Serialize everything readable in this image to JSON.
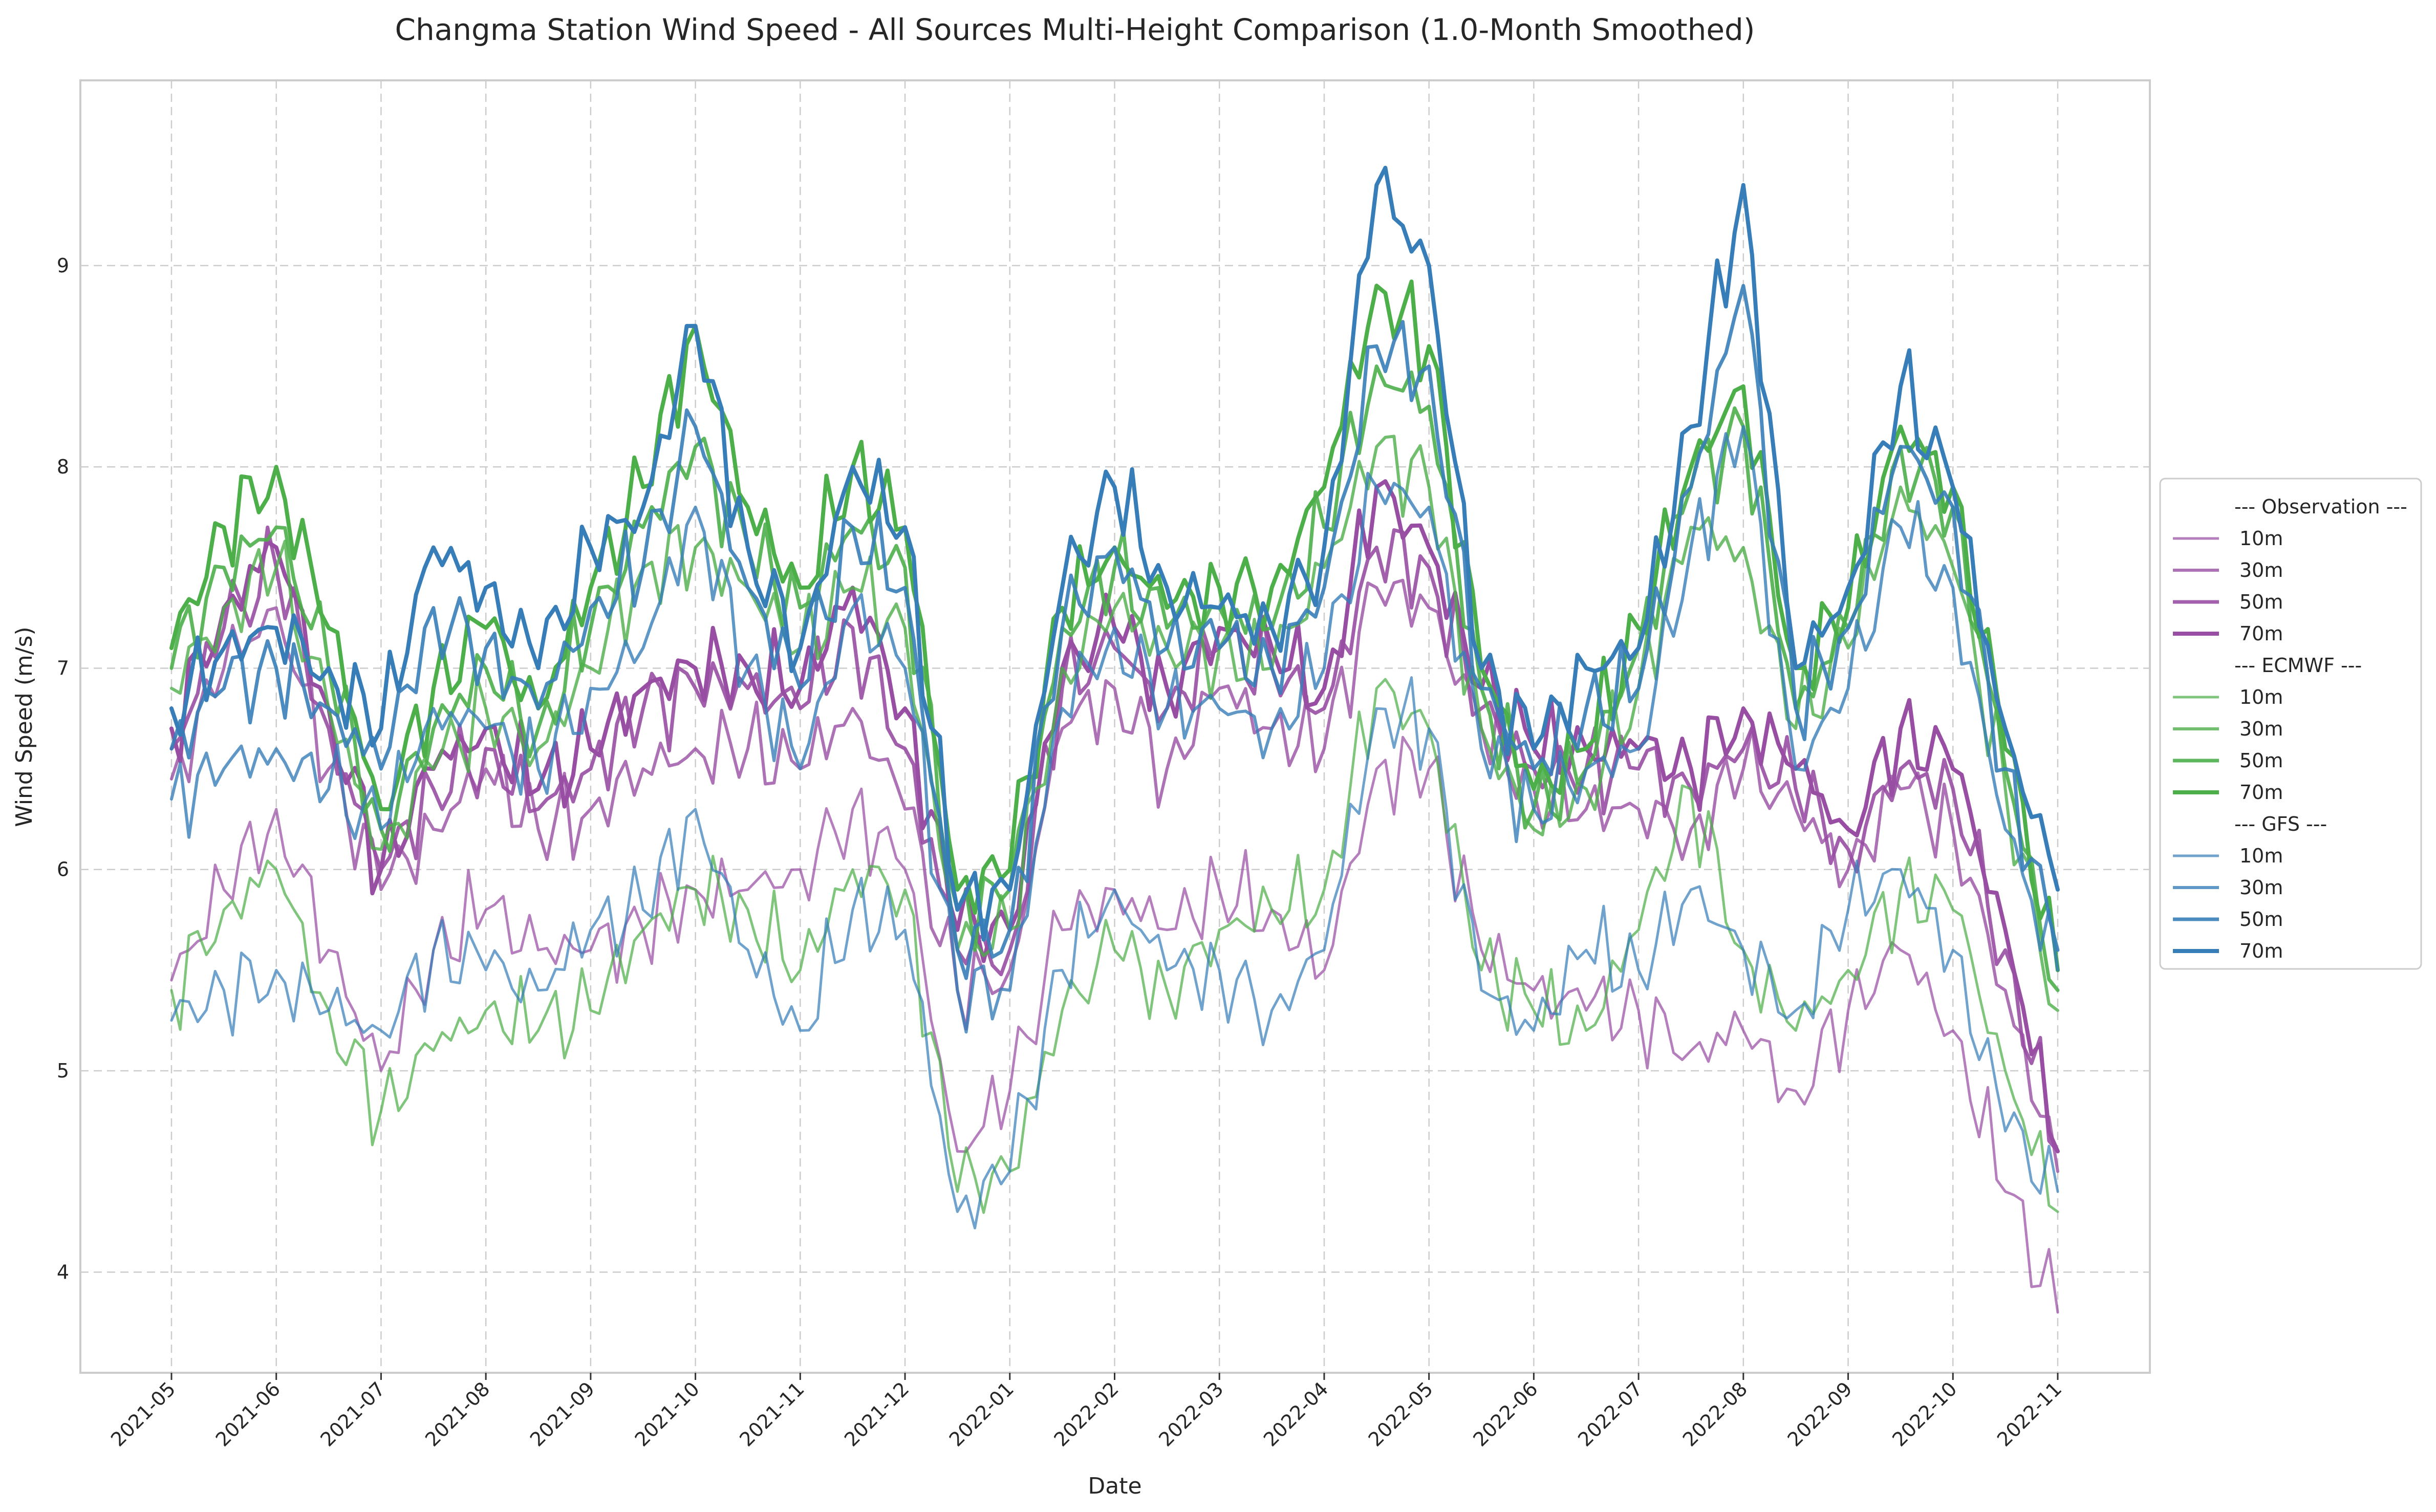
{
  "chart_data": {
    "type": "line",
    "title": "Changma Station Wind Speed - All Sources Multi-Height Comparison (1.0-Month Smoothed)",
    "xlabel": "Date",
    "ylabel": "Wind Speed (m/s)",
    "x_ticks": [
      "2021-05",
      "2021-06",
      "2021-07",
      "2021-08",
      "2021-09",
      "2021-10",
      "2021-11",
      "2021-12",
      "2022-01",
      "2022-02",
      "2022-03",
      "2022-04",
      "2022-05",
      "2022-06",
      "2022-07",
      "2022-08",
      "2022-09",
      "2022-10",
      "2022-11"
    ],
    "y_ticks": [
      "4",
      "5",
      "6",
      "7",
      "8",
      "9"
    ],
    "ylim": [
      3.5,
      9.92
    ],
    "grid": true,
    "legend_position": "right",
    "colors": {
      "observation": "#984ea3",
      "ecmwf": "#4daf4a",
      "gfs": "#377eb8"
    },
    "sources": [
      {
        "group": "--- Observation ---",
        "series": [
          {
            "name": "10m",
            "values": [
              5.45,
              5.9,
              6.3,
              5.6,
              5.0,
              5.6,
              5.8,
              5.6,
              5.6,
              5.7,
              5.9,
              5.9,
              6.0,
              6.3,
              6.0,
              4.6,
              4.9,
              5.7,
              5.9,
              5.7,
              5.9,
              5.8,
              5.5,
              6.5,
              6.5,
              5.6,
              5.4,
              5.3,
              5.3,
              5.1,
              5.2,
              4.9,
              5.3,
              5.6,
              5.2,
              4.4,
              3.8
            ]
          },
          {
            "name": "30m",
            "values": [
              6.45,
              7.0,
              7.3,
              6.5,
              5.9,
              6.2,
              6.5,
              6.2,
              6.3,
              6.5,
              6.6,
              6.6,
              6.5,
              6.8,
              6.3,
              5.4,
              5.5,
              6.7,
              6.9,
              6.5,
              6.9,
              6.7,
              6.6,
              7.4,
              7.3,
              6.7,
              6.4,
              6.3,
              6.3,
              6.2,
              6.5,
              6.3,
              6.0,
              6.4,
              6.2,
              5.4,
              4.5
            ]
          },
          {
            "name": "50m",
            "values": [
              6.6,
              7.2,
              7.5,
              6.7,
              6.0,
              6.4,
              6.6,
              6.3,
              6.5,
              6.8,
              6.9,
              6.9,
              6.8,
              7.2,
              6.6,
              5.6,
              5.6,
              6.9,
              7.1,
              6.8,
              7.1,
              7.0,
              6.8,
              7.6,
              7.5,
              6.8,
              6.5,
              6.5,
              6.5,
              6.4,
              6.6,
              6.4,
              6.1,
              6.5,
              6.4,
              5.6,
              4.6
            ]
          },
          {
            "name": "70m",
            "values": [
              6.7,
              7.3,
              7.6,
              6.8,
              6.0,
              6.5,
              6.7,
              6.4,
              6.6,
              6.9,
              7.0,
              7.0,
              6.9,
              7.4,
              6.8,
              5.7,
              5.7,
              7.0,
              7.2,
              6.9,
              7.2,
              7.1,
              6.9,
              7.9,
              7.6,
              6.9,
              6.6,
              6.6,
              6.6,
              6.5,
              6.8,
              6.5,
              6.2,
              6.7,
              6.5,
              5.7,
              4.6
            ]
          }
        ]
      },
      {
        "group": "--- ECMWF ---",
        "series": [
          {
            "name": "10m",
            "values": [
              5.4,
              5.8,
              6.0,
              5.3,
              4.8,
              5.1,
              5.3,
              5.2,
              5.3,
              5.7,
              5.9,
              5.8,
              5.5,
              6.0,
              5.9,
              4.4,
              4.5,
              5.3,
              5.6,
              5.4,
              5.7,
              5.8,
              5.9,
              6.9,
              6.7,
              5.5,
              5.3,
              5.2,
              5.7,
              6.4,
              5.6,
              5.2,
              5.5,
              5.9,
              5.8,
              5.0,
              4.3
            ]
          },
          {
            "name": "30m",
            "values": [
              6.9,
              7.3,
              7.5,
              6.8,
              6.1,
              6.5,
              6.8,
              6.6,
              7.0,
              7.5,
              7.6,
              7.4,
              7.1,
              7.4,
              7.2,
              5.6,
              5.7,
              7.0,
              7.3,
              7.1,
              7.1,
              7.0,
              7.5,
              8.1,
              7.9,
              6.7,
              6.2,
              6.4,
              6.9,
              7.7,
              7.6,
              6.7,
              7.1,
              7.9,
              7.5,
              6.4,
              5.3
            ]
          },
          {
            "name": "50m",
            "values": [
              7.0,
              7.5,
              7.7,
              7.0,
              6.2,
              6.7,
              7.0,
              6.7,
              7.2,
              7.7,
              8.1,
              7.6,
              7.3,
              7.7,
              7.5,
              5.8,
              5.9,
              7.2,
              7.5,
              7.2,
              7.3,
              7.2,
              7.7,
              8.5,
              8.3,
              6.9,
              6.3,
              6.5,
              7.1,
              7.9,
              8.2,
              6.8,
              7.2,
              8.1,
              7.8,
              6.5,
              5.4
            ]
          },
          {
            "name": "70m",
            "values": [
              7.1,
              7.7,
              8.0,
              7.2,
              6.3,
              6.9,
              7.2,
              6.8,
              7.4,
              7.9,
              8.7,
              7.8,
              7.4,
              8.0,
              7.7,
              5.9,
              6.0,
              7.3,
              7.6,
              7.3,
              7.4,
              7.4,
              7.9,
              8.9,
              8.6,
              7.0,
              6.4,
              6.6,
              7.2,
              8.0,
              8.4,
              7.0,
              7.3,
              8.2,
              7.9,
              6.6,
              5.5
            ]
          }
        ]
      },
      {
        "group": "--- GFS ---",
        "series": [
          {
            "name": "10m",
            "values": [
              5.25,
              5.4,
              5.5,
              5.3,
              5.2,
              5.6,
              5.5,
              5.4,
              5.7,
              5.8,
              6.3,
              5.6,
              5.2,
              5.8,
              5.7,
              4.3,
              4.5,
              5.5,
              5.9,
              5.5,
              5.5,
              5.3,
              5.6,
              6.8,
              6.7,
              5.4,
              5.2,
              5.6,
              5.5,
              5.9,
              5.6,
              5.3,
              5.8,
              6.0,
              5.6,
              4.7,
              4.4
            ]
          },
          {
            "name": "30m",
            "values": [
              6.35,
              6.5,
              6.6,
              6.4,
              6.2,
              6.8,
              6.7,
              6.5,
              6.9,
              7.1,
              7.8,
              7.0,
              6.5,
              7.3,
              7.0,
              5.4,
              5.4,
              6.8,
              7.2,
              6.8,
              6.8,
              6.7,
              7.0,
              7.9,
              7.8,
              6.6,
              6.3,
              6.5,
              6.6,
              7.6,
              8.2,
              6.5,
              6.9,
              7.7,
              7.4,
              6.2,
              5.5
            ]
          },
          {
            "name": "50m",
            "values": [
              6.6,
              6.9,
              7.0,
              6.8,
              6.5,
              7.3,
              7.1,
              6.8,
              7.3,
              7.5,
              8.2,
              7.4,
              6.9,
              7.7,
              7.4,
              5.6,
              5.7,
              7.2,
              7.6,
              7.1,
              7.1,
              7.0,
              7.4,
              8.6,
              8.5,
              6.9,
              6.5,
              6.8,
              6.9,
              7.9,
              8.9,
              6.8,
              7.2,
              8.1,
              7.8,
              6.5,
              5.6
            ]
          },
          {
            "name": "70m",
            "values": [
              6.8,
              7.1,
              7.2,
              7.0,
              6.7,
              7.6,
              7.4,
              7.0,
              7.6,
              7.8,
              8.7,
              7.6,
              7.1,
              8.0,
              7.7,
              5.8,
              5.9,
              7.4,
              7.9,
              7.4,
              7.3,
              7.2,
              7.6,
              9.4,
              9.0,
              7.0,
              6.6,
              7.0,
              7.1,
              8.2,
              9.4,
              7.0,
              7.4,
              8.4,
              7.9,
              6.7,
              5.9
            ]
          }
        ]
      }
    ]
  }
}
